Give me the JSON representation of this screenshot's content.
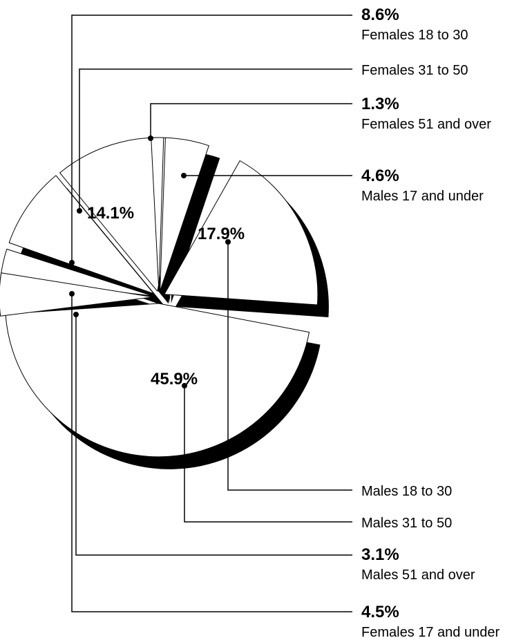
{
  "chart_data": {
    "type": "pie",
    "title": "",
    "slices": [
      {
        "name": "Females 18 to 30",
        "value": 8.6,
        "value_label": "8.6%"
      },
      {
        "name": "Females 31 to 50",
        "value": 14.1,
        "value_label": "14.1%"
      },
      {
        "name": "Females 51 and over",
        "value": 1.3,
        "value_label": "1.3%"
      },
      {
        "name": "Males 17 and under",
        "value": 4.6,
        "value_label": "4.6%"
      },
      {
        "name": "Males 18 to 30",
        "value": 17.9,
        "value_label": "17.9%"
      },
      {
        "name": "Males 31 to 50",
        "value": 45.9,
        "value_label": "45.9%"
      },
      {
        "name": "Males 51 and over",
        "value": 3.1,
        "value_label": "3.1%"
      },
      {
        "name": "Females 17 and under",
        "value": 4.5,
        "value_label": "4.5%"
      }
    ],
    "colors": {
      "slice_fill": "#ffffff",
      "slice_edge": "#000000",
      "shadow": "#000000",
      "leader": "#000000"
    }
  }
}
